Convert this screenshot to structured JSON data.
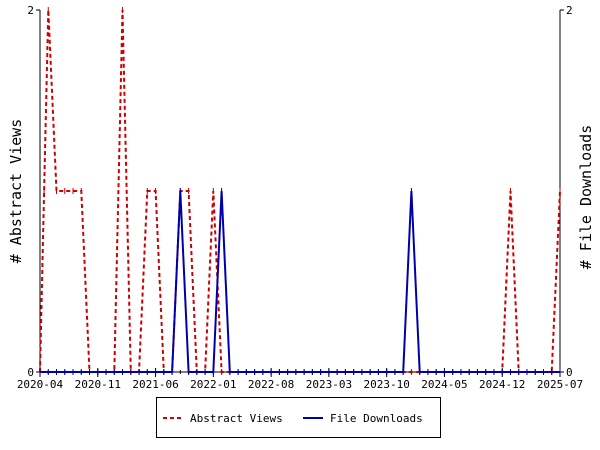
{
  "chart_data": {
    "type": "line",
    "ylabel_left": "# Abstract Views",
    "ylabel_right": "# File Downloads",
    "ylim": [
      0,
      2
    ],
    "y_ticks": [
      "0",
      "2"
    ],
    "x_range_months": [
      0,
      63
    ],
    "x_tick_labels": [
      "2020-04",
      "2020-11",
      "2021-06",
      "2022-01",
      "2022-08",
      "2023-03",
      "2023-10",
      "2024-05",
      "2024-12",
      "2025-07"
    ],
    "x_tick_positions_months": [
      0,
      7,
      14,
      21,
      28,
      35,
      42,
      49,
      56,
      63
    ],
    "grid": false,
    "legend_position": "bottom",
    "series": [
      {
        "name": "Abstract Views",
        "color": "#cc0000",
        "style": "dashed",
        "x_months": [
          0,
          0.5,
          1,
          2,
          3,
          4,
          5,
          6,
          7,
          8,
          9,
          10,
          11,
          12,
          13,
          14,
          15,
          16,
          17,
          18,
          19,
          20,
          21,
          22,
          23,
          24,
          25,
          26,
          27,
          28,
          29,
          30,
          31,
          32,
          33,
          34,
          35,
          36,
          37,
          38,
          39,
          40,
          41,
          42,
          43,
          44,
          45,
          46,
          47,
          48,
          49,
          50,
          51,
          52,
          53,
          54,
          55,
          56,
          57,
          58,
          59,
          60,
          61,
          62,
          63
        ],
        "values": [
          0,
          1,
          2,
          1,
          1,
          1,
          1,
          0,
          0,
          0,
          0,
          2,
          0,
          0,
          1,
          1,
          0,
          0,
          1,
          1,
          0,
          0,
          1,
          0,
          0,
          0,
          0,
          0,
          0,
          0,
          0,
          0,
          0,
          0,
          0,
          0,
          0,
          0,
          0,
          0,
          0,
          0,
          0,
          0,
          0,
          0,
          0,
          0,
          0,
          0,
          0,
          0,
          0,
          0,
          0,
          0,
          0,
          0,
          1,
          0,
          0,
          0,
          0,
          0,
          1
        ]
      },
      {
        "name": "File Downloads",
        "color": "#0000aa",
        "style": "solid",
        "x_months": [
          0,
          1,
          2,
          3,
          4,
          5,
          6,
          7,
          8,
          9,
          10,
          11,
          12,
          13,
          14,
          15,
          16,
          17,
          18,
          19,
          20,
          21,
          22,
          23,
          24,
          25,
          26,
          27,
          28,
          29,
          30,
          31,
          32,
          33,
          34,
          35,
          36,
          37,
          38,
          39,
          40,
          41,
          42,
          43,
          44,
          45,
          46,
          47,
          48,
          49,
          50,
          51,
          52,
          53,
          54,
          55,
          56,
          57,
          58,
          59,
          60,
          61,
          62,
          63
        ],
        "values": [
          0,
          0,
          0,
          0,
          0,
          0,
          0,
          0,
          0,
          0,
          0,
          0,
          0,
          0,
          0,
          0,
          0,
          1,
          0,
          0,
          0,
          0,
          1,
          0,
          0,
          0,
          0,
          0,
          0,
          0,
          0,
          0,
          0,
          0,
          0,
          0,
          0,
          0,
          0,
          0,
          0,
          0,
          0,
          0,
          0,
          1,
          0,
          0,
          0,
          0,
          0,
          0,
          0,
          0,
          0,
          0,
          0,
          0,
          0,
          0,
          0,
          0,
          0,
          0
        ]
      }
    ]
  }
}
